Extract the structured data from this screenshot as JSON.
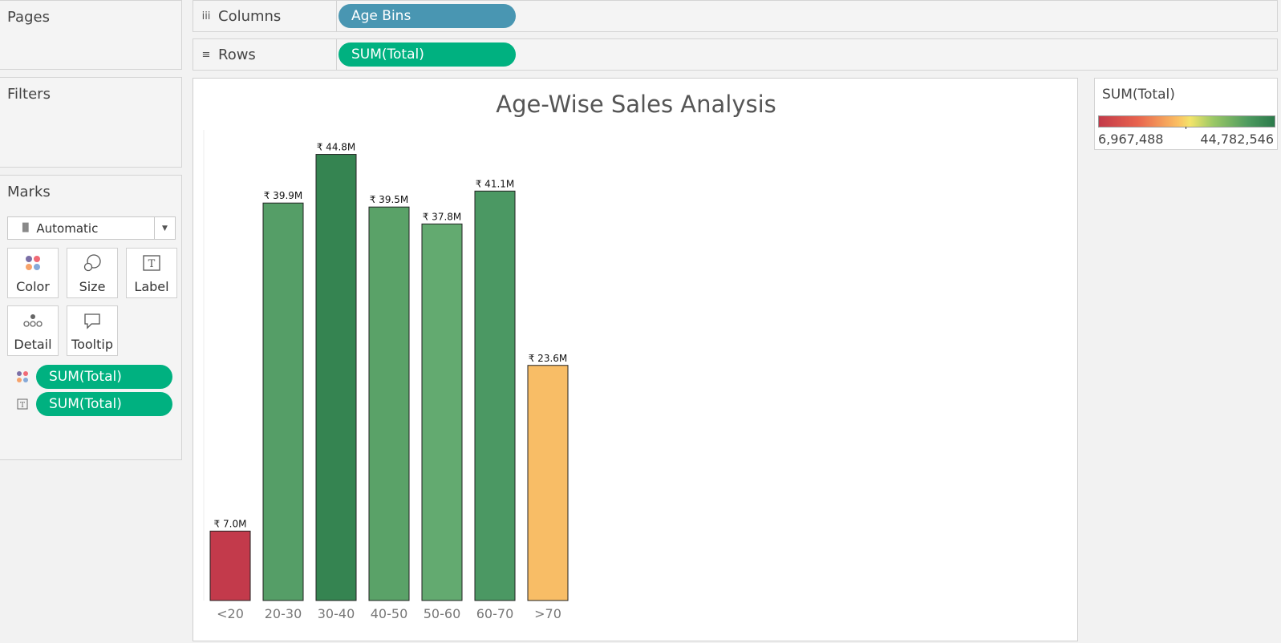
{
  "cards": {
    "pages_title": "Pages",
    "filters_title": "Filters",
    "marks_title": "Marks"
  },
  "shelves": {
    "columns": {
      "label": "Columns",
      "icon": "columns-icon",
      "pill": "Age Bins"
    },
    "rows": {
      "label": "Rows",
      "icon": "rows-icon",
      "pill": "SUM(Total)"
    }
  },
  "marks": {
    "type_label": "Automatic",
    "buttons": [
      {
        "label": "Color",
        "icon": "color-icon"
      },
      {
        "label": "Size",
        "icon": "size-icon"
      },
      {
        "label": "Label",
        "icon": "label-icon"
      },
      {
        "label": "Detail",
        "icon": "detail-icon"
      },
      {
        "label": "Tooltip",
        "icon": "tooltip-icon"
      }
    ],
    "fields": [
      {
        "icon": "color-icon",
        "pill": "SUM(Total)"
      },
      {
        "icon": "label-icon",
        "pill": "SUM(Total)"
      }
    ]
  },
  "legend": {
    "title": "SUM(Total)",
    "min_label": "6,967,488",
    "max_label": "44,782,546",
    "colors": {
      "low": "#c33a49",
      "mid": "#fbbf62",
      "high": "#2b7a4b"
    }
  },
  "view": {
    "title": "Age-Wise Sales Analysis"
  },
  "chart_data": {
    "type": "bar",
    "title": "Age-Wise Sales Analysis",
    "categories": [
      "<20",
      "20-30",
      "30-40",
      "40-50",
      "50-60",
      "60-70",
      ">70"
    ],
    "values": [
      6967488,
      39900000,
      44782546,
      39500000,
      37800000,
      41100000,
      23600000
    ],
    "labels": [
      "₹ 7.0M",
      "₹ 39.9M",
      "₹ 44.8M",
      "₹ 39.5M",
      "₹ 37.8M",
      "₹ 41.1M",
      "₹ 23.6M"
    ],
    "colors": [
      "#c33a4b",
      "#559e67",
      "#358451",
      "#5aa268",
      "#63aa70",
      "#4b9863",
      "#f8bd66"
    ],
    "xlabel": "",
    "ylabel": "",
    "ylim": [
      0,
      47000000
    ],
    "grid": false
  }
}
